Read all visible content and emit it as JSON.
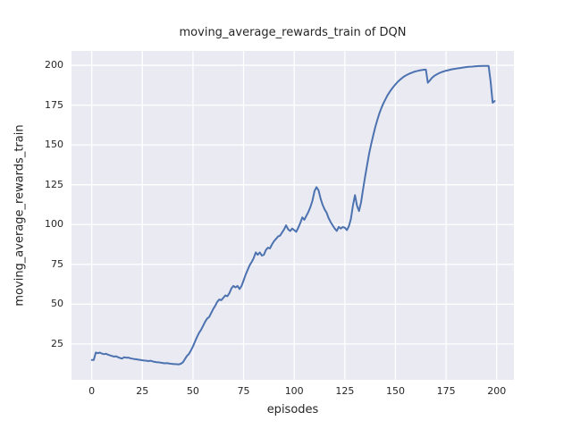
{
  "chart_data": {
    "type": "line",
    "title": "moving_average_rewards_train of DQN",
    "xlabel": "episodes",
    "ylabel": "moving_average_rewards_train",
    "x_ticks": [
      0,
      25,
      50,
      75,
      100,
      125,
      150,
      175,
      200
    ],
    "y_ticks": [
      25,
      50,
      75,
      100,
      125,
      150,
      175,
      200
    ],
    "xlim": [
      -10,
      208.5
    ],
    "ylim": [
      2.5,
      209
    ],
    "grid": true,
    "legend_position": "none",
    "colors": {
      "line": "#4c72b0",
      "axes_background": "#eaeaf2",
      "grid": "#ffffff",
      "figure_background": "#ffffff",
      "text": "#262626"
    },
    "series": [
      {
        "name": "DQN moving average rewards (train)",
        "x": [
          0,
          1,
          2,
          3,
          4,
          5,
          6,
          7,
          8,
          9,
          10,
          11,
          12,
          13,
          14,
          15,
          16,
          17,
          18,
          19,
          20,
          21,
          22,
          23,
          24,
          25,
          26,
          27,
          28,
          29,
          30,
          31,
          32,
          33,
          34,
          35,
          36,
          37,
          38,
          39,
          40,
          41,
          42,
          43,
          44,
          45,
          46,
          47,
          48,
          49,
          50,
          51,
          52,
          53,
          54,
          55,
          56,
          57,
          58,
          59,
          60,
          61,
          62,
          63,
          64,
          65,
          66,
          67,
          68,
          69,
          70,
          71,
          72,
          73,
          74,
          75,
          76,
          77,
          78,
          79,
          80,
          81,
          82,
          83,
          84,
          85,
          86,
          87,
          88,
          89,
          90,
          91,
          92,
          93,
          94,
          95,
          96,
          97,
          98,
          99,
          100,
          101,
          102,
          103,
          104,
          105,
          106,
          107,
          108,
          109,
          110,
          111,
          112,
          113,
          114,
          115,
          116,
          117,
          118,
          119,
          120,
          121,
          122,
          123,
          124,
          125,
          126,
          127,
          128,
          129,
          130,
          131,
          132,
          133,
          134,
          135,
          136,
          137,
          138,
          139,
          140,
          141,
          142,
          143,
          144,
          145,
          146,
          147,
          148,
          149,
          150,
          151,
          152,
          153,
          154,
          155,
          156,
          157,
          158,
          159,
          160,
          161,
          162,
          163,
          164,
          165,
          166,
          167,
          168,
          169,
          170,
          171,
          172,
          173,
          174,
          175,
          176,
          177,
          178,
          179,
          180,
          181,
          182,
          183,
          184,
          185,
          186,
          187,
          188,
          189,
          190,
          191,
          192,
          193,
          194,
          195,
          196,
          197,
          198,
          199
        ],
        "values": [
          15.0,
          15.0,
          19.6,
          19.3,
          19.6,
          19.0,
          18.6,
          18.9,
          18.3,
          17.9,
          17.5,
          17.1,
          17.3,
          16.7,
          16.2,
          15.9,
          16.7,
          16.4,
          16.5,
          16.1,
          15.8,
          15.6,
          15.4,
          15.2,
          15.0,
          14.8,
          14.6,
          14.5,
          14.3,
          14.5,
          14.1,
          13.8,
          13.6,
          13.5,
          13.3,
          13.1,
          12.9,
          13.0,
          12.8,
          12.6,
          12.5,
          12.4,
          12.3,
          12.2,
          12.6,
          13.5,
          15.5,
          17.5,
          18.8,
          21.0,
          23.5,
          26.5,
          29.5,
          32.0,
          34.0,
          36.5,
          39.0,
          41.0,
          42.0,
          44.5,
          47.0,
          49.0,
          51.5,
          53.0,
          52.5,
          54.0,
          55.5,
          55.0,
          57.0,
          60.0,
          61.5,
          60.5,
          61.5,
          59.5,
          61.5,
          65.0,
          68.5,
          71.5,
          74.5,
          76.5,
          79.0,
          82.5,
          81.0,
          82.5,
          80.5,
          81.0,
          84.0,
          85.5,
          85.0,
          87.5,
          89.5,
          91.0,
          92.5,
          93.0,
          95.0,
          97.0,
          99.5,
          97.0,
          96.0,
          97.5,
          96.5,
          95.5,
          98.0,
          101.0,
          104.5,
          103.0,
          105.5,
          108.0,
          111.0,
          115.0,
          121.0,
          123.5,
          121.5,
          116.5,
          112.5,
          109.5,
          107.5,
          104.0,
          101.5,
          99.5,
          97.5,
          96.0,
          98.5,
          97.5,
          98.5,
          98.0,
          96.5,
          99.0,
          103.5,
          112.0,
          118.5,
          112.0,
          108.5,
          114.0,
          122.0,
          130.0,
          137.5,
          144.5,
          150.5,
          156.0,
          161.0,
          165.5,
          169.5,
          173.0,
          176.0,
          178.5,
          181.0,
          183.0,
          184.8,
          186.5,
          188.0,
          189.4,
          190.6,
          191.7,
          192.7,
          193.5,
          194.2,
          194.8,
          195.3,
          195.8,
          196.2,
          196.5,
          196.8,
          197.0,
          197.2,
          197.3,
          189.0,
          190.5,
          192.0,
          193.2,
          194.0,
          194.7,
          195.3,
          195.8,
          196.2,
          196.6,
          196.9,
          197.2,
          197.5,
          197.7,
          197.9,
          198.1,
          198.3,
          198.5,
          198.7,
          198.9,
          199.0,
          199.1,
          199.2,
          199.3,
          199.4,
          199.5,
          199.5,
          199.6,
          199.6,
          199.6,
          199.6,
          190.0,
          176.5,
          177.5
        ]
      }
    ]
  }
}
